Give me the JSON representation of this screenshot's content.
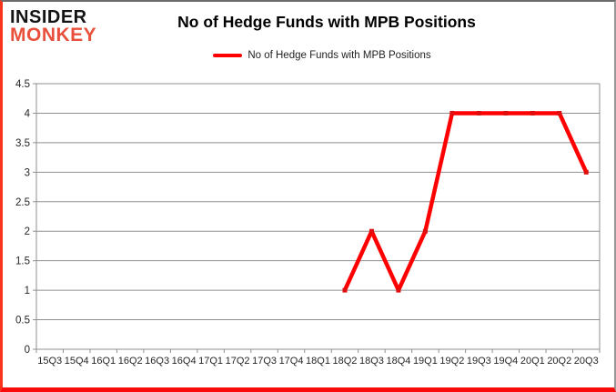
{
  "logo": {
    "line1": "INSIDER",
    "line2": "MONKEY"
  },
  "header": {
    "title": "No of Hedge Funds with MPB Positions"
  },
  "legend": {
    "label": "No of Hedge Funds with MPB Positions",
    "line_color": "#fe0000"
  },
  "colors": {
    "line_red": "#fe0000",
    "marker_red": "#df0f0f",
    "logo_red": "#e8503c",
    "grid_gray": "#8f8f8f",
    "tick_label": "#262626",
    "border_red": "#f80c0c"
  },
  "chart_data": {
    "type": "line",
    "title": "No of Hedge Funds with MPB Positions",
    "categories": [
      "15Q3",
      "15Q4",
      "16Q1",
      "16Q2",
      "16Q3",
      "16Q4",
      "17Q1",
      "17Q2",
      "17Q3",
      "17Q4",
      "18Q1",
      "18Q2",
      "18Q3",
      "18Q4",
      "19Q1",
      "19Q2",
      "19Q3",
      "19Q4",
      "20Q1",
      "20Q2",
      "20Q3"
    ],
    "series": [
      {
        "name": "No of Hedge Funds with MPB Positions",
        "color": "#fe0000",
        "values": [
          null,
          null,
          null,
          null,
          null,
          null,
          null,
          null,
          null,
          null,
          null,
          1,
          2,
          1,
          2,
          4,
          4,
          4,
          4,
          4,
          3
        ]
      }
    ],
    "ylim": [
      0,
      4.5
    ],
    "yticks": [
      0,
      0.5,
      1,
      1.5,
      2,
      2.5,
      3,
      3.5,
      4,
      4.5
    ],
    "ytick_labels": [
      "0",
      "0.5",
      "1",
      "1.5",
      "2",
      "2.5",
      "3",
      "3.5",
      "4",
      "4.5"
    ],
    "xlabel": "",
    "ylabel": "",
    "grid": true,
    "legend_position": "top"
  }
}
